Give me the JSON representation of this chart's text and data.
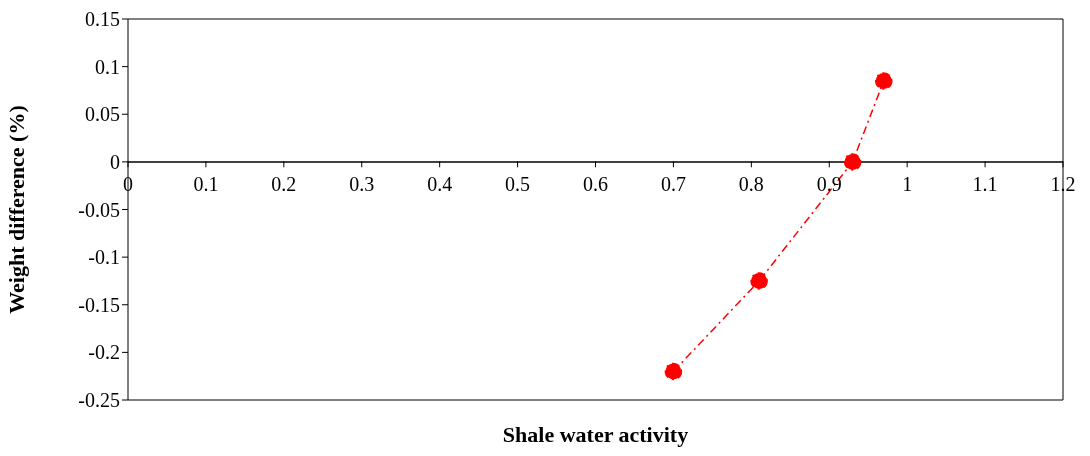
{
  "chart_data": {
    "type": "line",
    "xlabel": "Shale water activity",
    "ylabel": "Weight difference (%)",
    "x": [
      0.7,
      0.81,
      0.93,
      0.97
    ],
    "series": [
      {
        "color": "#ff0000",
        "values": [
          -0.22,
          -0.125,
          0,
          0.085
        ]
      }
    ],
    "xlim": [
      0,
      1.2
    ],
    "xticks": [
      0,
      0.1,
      0.2,
      0.3,
      0.4,
      0.5,
      0.6,
      0.7,
      0.8,
      0.9,
      1,
      1.1,
      1.2
    ],
    "ylim": [
      -0.25,
      0.15
    ],
    "yticks": [
      -0.25,
      -0.2,
      -0.15,
      -0.1,
      -0.05,
      0,
      0.05,
      0.1,
      0.15
    ],
    "grid": false,
    "marker": "circle",
    "line_style": "dashed"
  }
}
